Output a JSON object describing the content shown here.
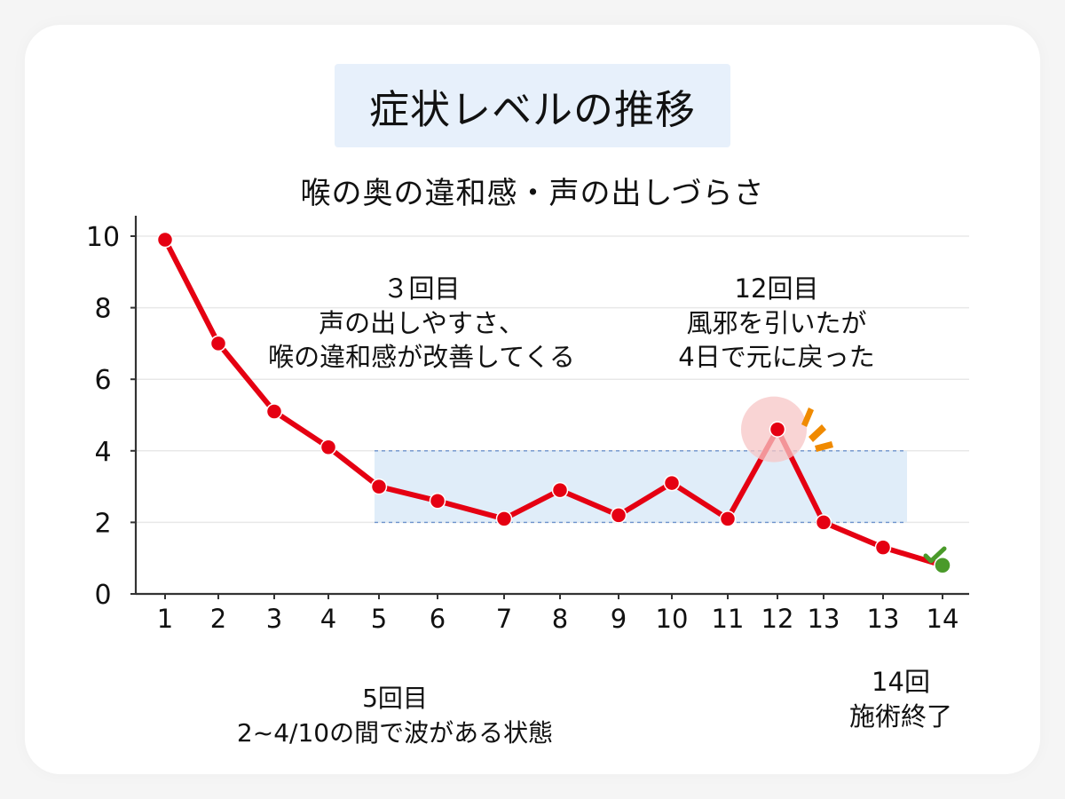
{
  "title": "症状レベルの推移",
  "subtitle": "喉の奥の違和感・声の出しづらさ",
  "annotations": {
    "round3": {
      "line1": "３回目",
      "line2": "声の出しやすさ、",
      "line3": "喉の違和感が改善してくる"
    },
    "round12": {
      "line1": "12回目",
      "line2": "風邪を引いたが",
      "line3": "4日で元に戻った"
    },
    "round5": {
      "line1": "5回目",
      "line2": "2~4/10の間で波がある状態"
    },
    "round14": {
      "line1": "14回",
      "line2": "施術終了"
    }
  },
  "colors": {
    "line": "#e50012",
    "point": "#e50012",
    "final_point": "#4a9a2a",
    "band": "#dbeaf8",
    "band_border": "#6d92cc",
    "highlight": "#f7c6c6",
    "spark": "#f08a00",
    "grid": "#e8e8e8",
    "axis": "#333333"
  },
  "chart_data": {
    "type": "line",
    "title": "症状レベルの推移",
    "subtitle": "喉の奥の違和感・声の出しづらさ",
    "categories": [
      "1",
      "2",
      "3",
      "4",
      "5",
      "6",
      "7",
      "8",
      "9",
      "10",
      "11",
      "12",
      "13",
      "13",
      "14"
    ],
    "values": [
      9.9,
      7.0,
      5.1,
      4.1,
      3.0,
      2.6,
      2.1,
      2.9,
      2.2,
      3.1,
      2.1,
      4.6,
      2.0,
      1.3,
      0.8
    ],
    "yticks": [
      0,
      2,
      4,
      6,
      8,
      10
    ],
    "ylim": [
      0,
      10
    ],
    "grid": true,
    "band": {
      "from_category_index": 4,
      "to_category_index": 13,
      "ymin": 2,
      "ymax": 4
    },
    "highlight_index": 11,
    "final_index": 14
  }
}
